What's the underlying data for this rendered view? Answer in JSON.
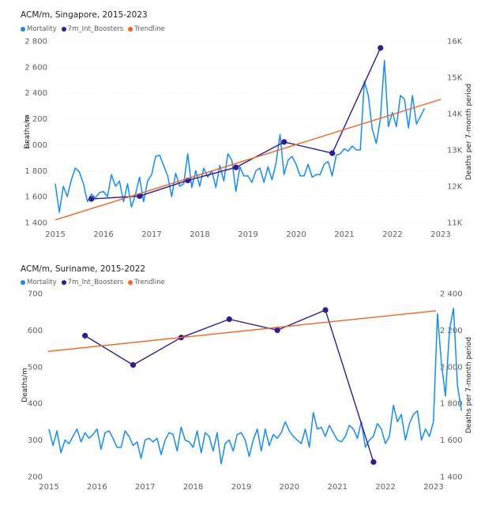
{
  "chart_data": [
    {
      "type": "line",
      "title": "ACM/m, Singapore, 2015-2023",
      "legend": [
        "Mortality",
        "7m_Int_Boosters",
        "Trendline"
      ],
      "legend_position": "top-left",
      "ylabel": "Deaths/m",
      "y2label": "Deaths per 7-month period",
      "xlim": [
        2015,
        2023
      ],
      "ylim": [
        1400,
        2800
      ],
      "y2lim": [
        11000,
        16000
      ],
      "x_ticks": [
        "2015",
        "2016",
        "2017",
        "2018",
        "2019",
        "2020",
        "2021",
        "2022",
        "2023"
      ],
      "y_ticks": [
        "1 400",
        "1 600",
        "1 800",
        "2 000",
        "2 200",
        "2 400",
        "2 600",
        "2 800"
      ],
      "y2_ticks": [
        "11K",
        "12K",
        "13K",
        "14K",
        "15K",
        "16K"
      ],
      "grid": true,
      "colors": {
        "Mortality": "#118dff",
        "7m_Int_Boosters": "#2e1a9b",
        "Trendline": "#f26522"
      },
      "series": [
        {
          "name": "Mortality",
          "axis": "left",
          "x_start": 2015.0,
          "x_step": 0.0833,
          "values": [
            1700,
            1480,
            1680,
            1600,
            1730,
            1820,
            1790,
            1700,
            1560,
            1620,
            1590,
            1630,
            1640,
            1600,
            1770,
            1680,
            1720,
            1560,
            1700,
            1520,
            1620,
            1750,
            1560,
            1720,
            1770,
            1910,
            1920,
            1840,
            1760,
            1600,
            1780,
            1680,
            1700,
            1930,
            1670,
            1800,
            1680,
            1820,
            1750,
            1800,
            1670,
            1840,
            1720,
            1930,
            1880,
            1640,
            1830,
            1760,
            1760,
            1710,
            1800,
            1820,
            1710,
            1830,
            1730,
            1860,
            2080,
            1770,
            1880,
            1910,
            1850,
            1760,
            1760,
            1850,
            1750,
            1770,
            1770,
            1850,
            1870,
            1760,
            1920,
            1930,
            1970,
            1950,
            1990,
            1960,
            1960,
            2490,
            2380,
            2120,
            2010,
            2200,
            2650,
            2140,
            2250,
            2140,
            2380,
            2350,
            2130,
            2380,
            2160,
            2220,
            2280
          ]
        },
        {
          "name": "7m_Int_Boosters",
          "axis": "right",
          "x": [
            2015.75,
            2016.75,
            2017.75,
            2018.75,
            2019.75,
            2020.75,
            2021.75
          ],
          "values": [
            11650,
            11730,
            12160,
            12520,
            13220,
            12910,
            15810
          ]
        },
        {
          "name": "Trendline",
          "axis": "left",
          "x": [
            2015.0,
            2023.0
          ],
          "values": [
            1420,
            2350
          ]
        }
      ]
    },
    {
      "type": "line",
      "title": "ACM/m, Suriname, 2015-2022",
      "legend": [
        "Mortality",
        "7m_Int_Boosters",
        "Trendline"
      ],
      "legend_position": "top-left",
      "ylabel": "Deaths/m",
      "y2label": "Deaths per 7-month period",
      "xlim": [
        2015,
        2023
      ],
      "ylim": [
        200,
        700
      ],
      "y2lim": [
        1400,
        2400
      ],
      "x_ticks": [
        "2015",
        "2016",
        "2017",
        "2018",
        "2019",
        "2020",
        "2021",
        "2022",
        "2023"
      ],
      "y_ticks": [
        "200",
        "300",
        "400",
        "500",
        "600",
        "700"
      ],
      "y2_ticks": [
        "1 400",
        "1 600",
        "1 800",
        "2 000",
        "2 200",
        "2 400"
      ],
      "grid": false,
      "colors": {
        "Mortality": "#118dff",
        "7m_Int_Boosters": "#2e1a9b",
        "Trendline": "#f26522"
      },
      "series": [
        {
          "name": "Mortality",
          "axis": "left",
          "x_start": 2015.0,
          "x_step": 0.0833,
          "values": [
            330,
            285,
            325,
            265,
            300,
            290,
            310,
            330,
            295,
            320,
            305,
            315,
            330,
            275,
            320,
            325,
            305,
            280,
            280,
            325,
            310,
            285,
            295,
            250,
            300,
            305,
            295,
            305,
            260,
            300,
            320,
            315,
            270,
            335,
            300,
            295,
            280,
            325,
            265,
            320,
            310,
            270,
            320,
            235,
            290,
            300,
            270,
            315,
            320,
            300,
            255,
            300,
            330,
            270,
            330,
            285,
            315,
            305,
            320,
            350,
            325,
            310,
            300,
            290,
            330,
            280,
            375,
            330,
            335,
            310,
            340,
            320,
            300,
            295,
            310,
            340,
            330,
            305,
            350,
            280,
            300,
            310,
            345,
            330,
            290,
            310,
            395,
            350,
            370,
            300,
            345,
            370,
            380,
            300,
            330,
            310,
            350,
            645,
            510,
            420,
            600,
            660,
            450,
            380
          ]
        },
        {
          "name": "7m_Int_Boosters",
          "axis": "right",
          "x": [
            2015.75,
            2016.75,
            2017.75,
            2018.75,
            2019.75,
            2020.75,
            2021.75
          ],
          "values": [
            2170,
            2010,
            2160,
            2260,
            2200,
            2310,
            1480
          ]
        },
        {
          "name": "Trendline",
          "axis": "left",
          "x": [
            2014.98,
            2023.05
          ],
          "values": [
            542,
            653
          ]
        }
      ]
    }
  ]
}
